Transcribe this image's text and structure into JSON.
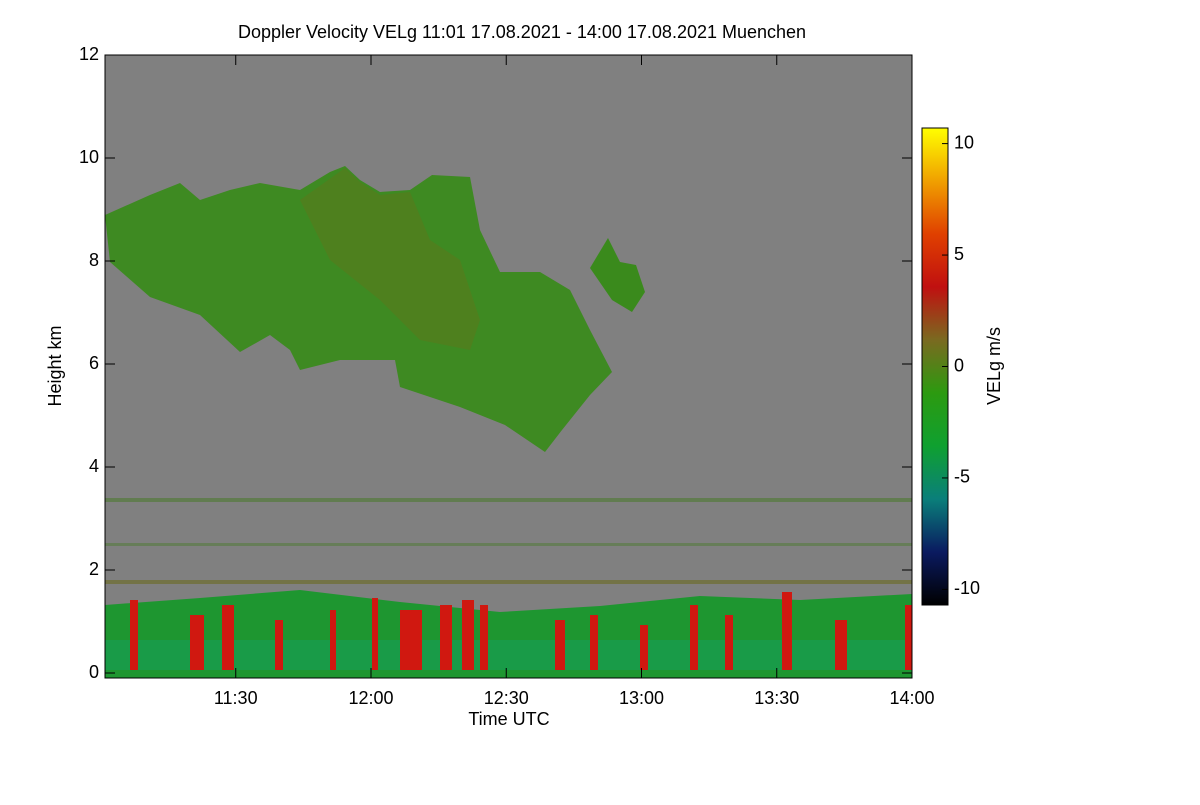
{
  "chart_data": {
    "type": "heatmap",
    "title": "Doppler Velocity VELg   11:01 17.08.2021 - 14:00 17.08.2021 Muenchen",
    "x_label": "Time UTC",
    "y_label": "Height km",
    "colorbar_label": "VELg m/s",
    "xlim": [
      11.0167,
      14.0
    ],
    "xticks": [
      {
        "value": 11.5,
        "label": "11:30"
      },
      {
        "value": 12.0,
        "label": "12:00"
      },
      {
        "value": 12.5,
        "label": "12:30"
      },
      {
        "value": 13.0,
        "label": "13:00"
      },
      {
        "value": 13.5,
        "label": "13:30"
      },
      {
        "value": 14.0,
        "label": "14:00"
      }
    ],
    "ylim": [
      0,
      12
    ],
    "yticks": [
      0,
      2,
      4,
      6,
      8,
      10,
      12
    ],
    "zlim": [
      -10.7,
      10.7
    ],
    "zticks": [
      -10,
      -5,
      0,
      5,
      10
    ],
    "colormap": [
      "#000000",
      "#0a1a60",
      "#0a7f7a",
      "#0fa030",
      "#2c9a10",
      "#7a6a20",
      "#c01010",
      "#e04000",
      "#f0a000",
      "#ffff00"
    ],
    "background": "#808080"
  }
}
